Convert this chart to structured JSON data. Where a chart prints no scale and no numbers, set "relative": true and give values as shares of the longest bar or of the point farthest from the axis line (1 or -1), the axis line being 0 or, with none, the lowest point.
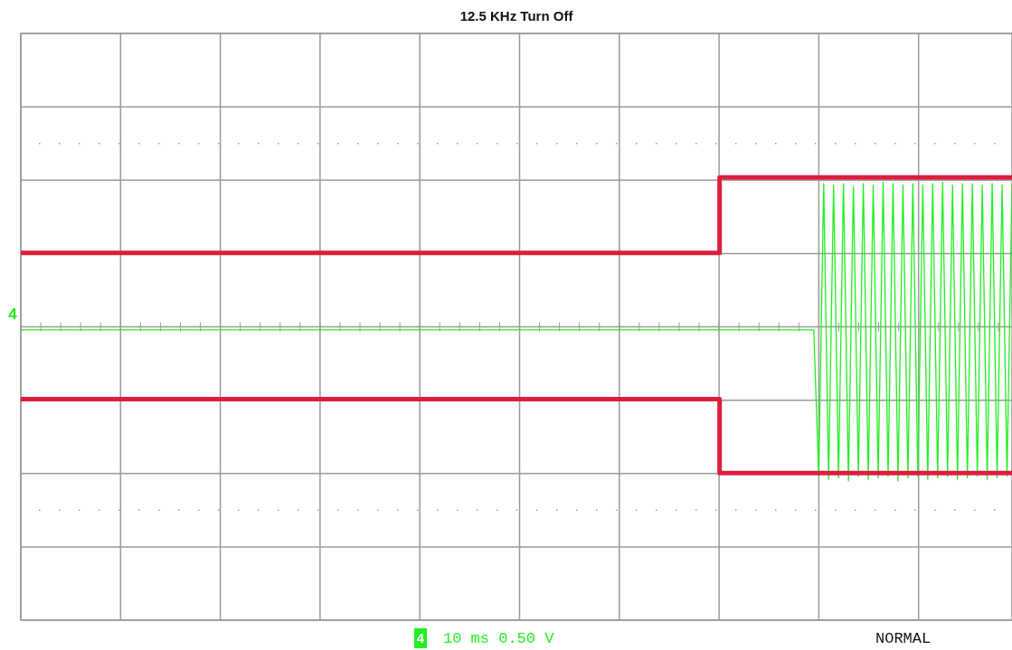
{
  "chart_data": {
    "type": "line",
    "relative": true,
    "grid": true,
    "title": "12.5 KHz Turn Off",
    "annotations": [
      "4",
      "4",
      "10 ms 0.50 V",
      "NORMAL"
    ],
    "categories": [
      null,
      null,
      null,
      null,
      null,
      null,
      null,
      null,
      null,
      null,
      null,
      null,
      null,
      null,
      null,
      null,
      null,
      null,
      null,
      null,
      null,
      null,
      null,
      null,
      null,
      null,
      null,
      null,
      null,
      null,
      null,
      null,
      null,
      null,
      null,
      null,
      null,
      null,
      null,
      null,
      null,
      null,
      null,
      null,
      null,
      null,
      null,
      null,
      null,
      null,
      null,
      null,
      null,
      null,
      null,
      null,
      null,
      null,
      null,
      null,
      null,
      null,
      null,
      null,
      null,
      null,
      null,
      null,
      null,
      null,
      null,
      null,
      null,
      null,
      null,
      null,
      null,
      null,
      null,
      null,
      null,
      null,
      null,
      null,
      null,
      null,
      null,
      null,
      null,
      null,
      null,
      null,
      null,
      null,
      null,
      null,
      null,
      null,
      null,
      null,
      null,
      null,
      null,
      null,
      null,
      null,
      null,
      null,
      null,
      null,
      null,
      null,
      null,
      null,
      null,
      null,
      null,
      null,
      null,
      null,
      null,
      null,
      null,
      null,
      null,
      null,
      null,
      null,
      null,
      null,
      null,
      null,
      null,
      null,
      null,
      null,
      null,
      null,
      null,
      null,
      null,
      null,
      null,
      null,
      null,
      null,
      null,
      null,
      null,
      null,
      null,
      null,
      null,
      null,
      null,
      null,
      null,
      null,
      null,
      null,
      null,
      null,
      null,
      null,
      null,
      null,
      null,
      null,
      null,
      null,
      null,
      null,
      null,
      null,
      null,
      null,
      null,
      null,
      null,
      null,
      null,
      null,
      null,
      null,
      null,
      null,
      null,
      null,
      null,
      null,
      null,
      null,
      null,
      null,
      null,
      null,
      null,
      null,
      null,
      null,
      null
    ],
    "series": [
      {
        "color": "#22ee22",
        "type": "line",
        "values": [
          -0.02,
          -0.02,
          -0.02,
          -0.02,
          -0.02,
          -0.02,
          -0.02,
          -0.02,
          -0.02,
          -0.02,
          -0.02,
          -0.02,
          -0.02,
          -0.02,
          -0.02,
          -0.02,
          -0.02,
          -0.02,
          -0.02,
          -0.02,
          -0.02,
          -0.02,
          -0.02,
          -0.02,
          -0.02,
          -0.02,
          -0.02,
          -0.02,
          -0.02,
          -0.02,
          -0.02,
          -0.02,
          -0.02,
          -0.02,
          -0.02,
          -0.02,
          -0.02,
          -0.02,
          -0.02,
          -0.02,
          -0.02,
          -0.02,
          -0.02,
          -0.02,
          -0.02,
          -0.02,
          -0.02,
          -0.02,
          -0.02,
          -0.02,
          -0.02,
          -0.02,
          -0.02,
          -0.02,
          -0.02,
          -0.02,
          -0.02,
          -0.02,
          -0.02,
          -0.02,
          -0.02,
          -0.02,
          -0.02,
          -0.02,
          -0.02,
          -0.02,
          -0.02,
          -0.02,
          -0.02,
          -0.02,
          -0.02,
          -0.02,
          -0.02,
          -0.02,
          -0.02,
          -0.02,
          -0.02,
          -0.02,
          -0.02,
          -0.02,
          -0.02,
          -0.02,
          -0.02,
          -0.02,
          -0.02,
          -0.02,
          -0.02,
          -0.02,
          -0.02,
          -0.02,
          -0.02,
          -0.02,
          -0.02,
          -0.02,
          -0.02,
          -0.02,
          -0.02,
          -0.02,
          -0.02,
          -0.02,
          -0.02,
          -0.02,
          -0.02,
          -0.02,
          -0.02,
          -0.02,
          -0.02,
          -0.02,
          -0.02,
          -0.02,
          -0.02,
          -0.02,
          -0.02,
          -0.02,
          -0.02,
          -0.02,
          -0.02,
          -0.02,
          -0.02,
          -0.02,
          -0.02,
          -0.02,
          -0.02,
          -0.02,
          -0.02,
          -0.02,
          -0.02,
          -0.02,
          -0.02,
          -0.02,
          -0.02,
          -0.02,
          -0.02,
          -0.02,
          -0.02,
          -0.02,
          -0.02,
          -0.02,
          -0.02,
          -0.02,
          -0.02,
          -0.02,
          -0.02,
          -0.02,
          -0.02,
          -0.02,
          -0.02,
          -0.02,
          -0.02,
          -0.02,
          -0.02,
          -0.02,
          -0.02,
          -0.02,
          -0.02,
          -0.02,
          -0.02,
          -0.02,
          -0.02,
          -0.02,
          -0.02,
          -0.97,
          0.93,
          -0.99,
          0.92,
          -0.98,
          0.93,
          -1,
          0.91,
          -0.97,
          0.93,
          -0.99,
          0.92,
          -0.98,
          0.94,
          -0.97,
          0.93,
          -1,
          0.92,
          -0.98,
          0.93,
          -0.97,
          0.92,
          -0.99,
          0.93,
          -0.98,
          0.94,
          -0.97,
          0.92,
          -0.99,
          0.93,
          -0.98,
          0.93,
          -0.97,
          0.92,
          -0.99,
          0.93,
          -0.98,
          0.92,
          -0.97,
          0.93
        ]
      },
      {
        "color": "#dc1e3c",
        "type": "step",
        "values": [
          0.48,
          0.48,
          0.48,
          0.48,
          0.48,
          0.48,
          0.48,
          0.48,
          0.48,
          0.48,
          0.48,
          0.48,
          0.48,
          0.48,
          0.48,
          0.48,
          0.48,
          0.48,
          0.48,
          0.48,
          0.48,
          0.48,
          0.48,
          0.48,
          0.48,
          0.48,
          0.48,
          0.48,
          0.48,
          0.48,
          0.48,
          0.48,
          0.48,
          0.48,
          0.48,
          0.48,
          0.48,
          0.48,
          0.48,
          0.48,
          0.48,
          0.48,
          0.48,
          0.48,
          0.48,
          0.48,
          0.48,
          0.48,
          0.48,
          0.48,
          0.48,
          0.48,
          0.48,
          0.48,
          0.48,
          0.48,
          0.48,
          0.48,
          0.48,
          0.48,
          0.48,
          0.48,
          0.48,
          0.48,
          0.48,
          0.48,
          0.48,
          0.48,
          0.48,
          0.48,
          0.48,
          0.48,
          0.48,
          0.48,
          0.48,
          0.48,
          0.48,
          0.48,
          0.48,
          0.48,
          0.48,
          0.48,
          0.48,
          0.48,
          0.48,
          0.48,
          0.48,
          0.48,
          0.48,
          0.48,
          0.48,
          0.48,
          0.48,
          0.48,
          0.48,
          0.48,
          0.48,
          0.48,
          0.48,
          0.48,
          0.48,
          0.48,
          0.48,
          0.48,
          0.48,
          0.48,
          0.48,
          0.48,
          0.48,
          0.48,
          0.48,
          0.48,
          0.48,
          0.48,
          0.48,
          0.48,
          0.48,
          0.48,
          0.48,
          0.48,
          0.48,
          0.48,
          0.48,
          0.48,
          0.48,
          0.48,
          0.48,
          0.48,
          0.48,
          0.48,
          0.48,
          0.48,
          0.48,
          0.48,
          0.48,
          0.48,
          0.48,
          0.48,
          0.48,
          0.48,
          0.48,
          0.97,
          0.97,
          0.97,
          0.97,
          0.97,
          0.97,
          0.97,
          0.97,
          0.97,
          0.97,
          0.97,
          0.97,
          0.97,
          0.97,
          0.97,
          0.97,
          0.97,
          0.97,
          0.97,
          0.97,
          0.97,
          0.97,
          0.97,
          0.97,
          0.97,
          0.97,
          0.97,
          0.97,
          0.97,
          0.97,
          0.97,
          0.97,
          0.97,
          0.97,
          0.97,
          0.97,
          0.97,
          0.97,
          0.97,
          0.97,
          0.97,
          0.97,
          0.97,
          0.97,
          0.97,
          0.97,
          0.97,
          0.97,
          0.97,
          0.97,
          0.97,
          0.97,
          0.97,
          0.97,
          0.97,
          0.97,
          0.97,
          0.97,
          0.97,
          0.97
        ]
      },
      {
        "color": "#dc1e3c",
        "type": "step",
        "values": [
          -0.47,
          -0.47,
          -0.47,
          -0.47,
          -0.47,
          -0.47,
          -0.47,
          -0.47,
          -0.47,
          -0.47,
          -0.47,
          -0.47,
          -0.47,
          -0.47,
          -0.47,
          -0.47,
          -0.47,
          -0.47,
          -0.47,
          -0.47,
          -0.47,
          -0.47,
          -0.47,
          -0.47,
          -0.47,
          -0.47,
          -0.47,
          -0.47,
          -0.47,
          -0.47,
          -0.47,
          -0.47,
          -0.47,
          -0.47,
          -0.47,
          -0.47,
          -0.47,
          -0.47,
          -0.47,
          -0.47,
          -0.47,
          -0.47,
          -0.47,
          -0.47,
          -0.47,
          -0.47,
          -0.47,
          -0.47,
          -0.47,
          -0.47,
          -0.47,
          -0.47,
          -0.47,
          -0.47,
          -0.47,
          -0.47,
          -0.47,
          -0.47,
          -0.47,
          -0.47,
          -0.47,
          -0.47,
          -0.47,
          -0.47,
          -0.47,
          -0.47,
          -0.47,
          -0.47,
          -0.47,
          -0.47,
          -0.47,
          -0.47,
          -0.47,
          -0.47,
          -0.47,
          -0.47,
          -0.47,
          -0.47,
          -0.47,
          -0.47,
          -0.47,
          -0.47,
          -0.47,
          -0.47,
          -0.47,
          -0.47,
          -0.47,
          -0.47,
          -0.47,
          -0.47,
          -0.47,
          -0.47,
          -0.47,
          -0.47,
          -0.47,
          -0.47,
          -0.47,
          -0.47,
          -0.47,
          -0.47,
          -0.47,
          -0.47,
          -0.47,
          -0.47,
          -0.47,
          -0.47,
          -0.47,
          -0.47,
          -0.47,
          -0.47,
          -0.47,
          -0.47,
          -0.47,
          -0.47,
          -0.47,
          -0.47,
          -0.47,
          -0.47,
          -0.47,
          -0.47,
          -0.47,
          -0.47,
          -0.47,
          -0.47,
          -0.47,
          -0.47,
          -0.47,
          -0.47,
          -0.47,
          -0.47,
          -0.47,
          -0.47,
          -0.47,
          -0.47,
          -0.47,
          -0.47,
          -0.47,
          -0.47,
          -0.47,
          -0.47,
          -0.47,
          -0.95,
          -0.95,
          -0.95,
          -0.95,
          -0.95,
          -0.95,
          -0.95,
          -0.95,
          -0.95,
          -0.95,
          -0.95,
          -0.95,
          -0.95,
          -0.95,
          -0.95,
          -0.95,
          -0.95,
          -0.95,
          -0.95,
          -0.95,
          -0.95,
          -0.95,
          -0.95,
          -0.95,
          -0.95,
          -0.95,
          -0.95,
          -0.95,
          -0.95,
          -0.95,
          -0.95,
          -0.95,
          -0.95,
          -0.95,
          -0.95,
          -0.95,
          -0.95,
          -0.95,
          -0.95,
          -0.95,
          -0.95,
          -0.95,
          -0.95,
          -0.95,
          -0.95,
          -0.95,
          -0.95,
          -0.95,
          -0.95,
          -0.95,
          -0.95,
          -0.95,
          -0.95,
          -0.95,
          -0.95,
          -0.95,
          -0.95,
          -0.95,
          -0.95,
          -0.95
        ]
      }
    ]
  }
}
